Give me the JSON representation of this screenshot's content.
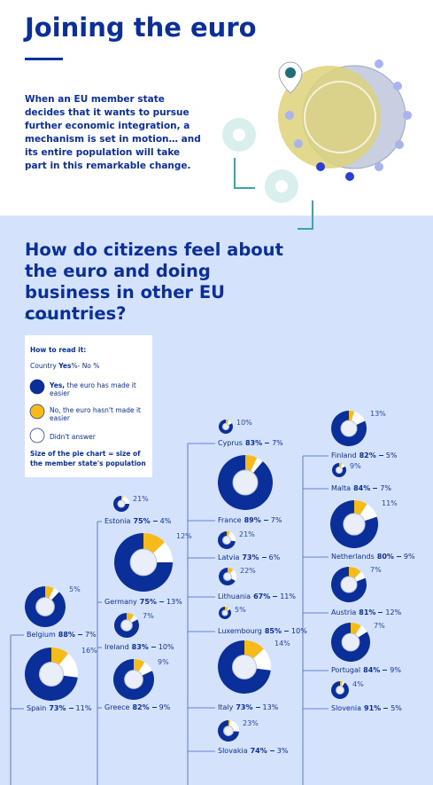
{
  "header": {
    "title": "Joining the euro",
    "intro": "When an EU member state decides that it wants to pursue further economic integration, a mechanism is set in motion… and its entire population will take part in this remarkable change."
  },
  "section": {
    "title": "How do citizens feel about the euro and doing business in other EU countries?"
  },
  "legend": {
    "heading": "How to read it:",
    "format": [
      "Country",
      "Yes",
      "%- No %"
    ],
    "items": [
      {
        "bold": "Yes,",
        "text": "the euro has made it easier"
      },
      {
        "text": "No, the euro hasn't made it easier"
      },
      {
        "text": "Didn't answer"
      }
    ],
    "note": "Size of the pie chart = size of the member state's population"
  },
  "chart_data": {
    "type": "pie",
    "colors": [
      "#0b2f99",
      "#f6bb1b",
      "#ffffff"
    ],
    "countries": [
      {
        "name": "Belgium",
        "values": [
          88,
          7,
          5
        ],
        "value_labels": [
          "88%",
          "7%",
          "5%"
        ]
      },
      {
        "name": "Spain",
        "values": [
          73,
          11,
          16
        ],
        "value_labels": [
          "73%",
          "11%",
          "16%"
        ]
      },
      {
        "name": "Estonia",
        "values": [
          75,
          4,
          21
        ],
        "value_labels": [
          "75%",
          "4%",
          "21%"
        ]
      },
      {
        "name": "Germany",
        "values": [
          75,
          13,
          12
        ],
        "value_labels": [
          "75%",
          "13%",
          "12%"
        ]
      },
      {
        "name": "Ireland",
        "values": [
          83,
          10,
          7
        ],
        "value_labels": [
          "83%",
          "10%",
          "7%"
        ]
      },
      {
        "name": "Greece",
        "values": [
          82,
          9,
          9
        ],
        "value_labels": [
          "82%",
          "9%",
          "9%"
        ]
      },
      {
        "name": "Cyprus",
        "values": [
          83,
          7,
          10
        ],
        "value_labels": [
          "83%",
          "7%",
          "10%"
        ]
      },
      {
        "name": "France",
        "values": [
          89,
          7
        ],
        "value_labels": [
          "89%",
          "7%"
        ]
      },
      {
        "name": "Latvia",
        "values": [
          73,
          6,
          21
        ],
        "value_labels": [
          "73%",
          "6%",
          "21%"
        ]
      },
      {
        "name": "Lithuania",
        "values": [
          67,
          11,
          22
        ],
        "value_labels": [
          "67%",
          "11%",
          "22%"
        ]
      },
      {
        "name": "Luxembourg",
        "values": [
          85,
          10,
          5
        ],
        "value_labels": [
          "85%",
          "10%",
          "5%"
        ]
      },
      {
        "name": "Italy",
        "values": [
          73,
          13,
          14
        ],
        "value_labels": [
          "73%",
          "13%",
          "14%"
        ]
      },
      {
        "name": "Slovakia",
        "values": [
          74,
          3,
          23
        ],
        "value_labels": [
          "74%",
          "3%",
          "23%"
        ]
      },
      {
        "name": "Finland",
        "values": [
          82,
          5,
          13
        ],
        "value_labels": [
          "82%",
          "5%",
          "13%"
        ]
      },
      {
        "name": "Malta",
        "values": [
          84,
          7,
          9
        ],
        "value_labels": [
          "84%",
          "7%",
          "9%"
        ]
      },
      {
        "name": "Netherlands",
        "values": [
          80,
          9,
          11
        ],
        "value_labels": [
          "80%",
          "9%",
          "11%"
        ]
      },
      {
        "name": "Austria",
        "values": [
          81,
          12,
          7
        ],
        "value_labels": [
          "81%",
          "12%",
          "7%"
        ]
      },
      {
        "name": "Portugal",
        "values": [
          84,
          9,
          7
        ],
        "value_labels": [
          "84%",
          "9%",
          "7%"
        ]
      },
      {
        "name": "Slovenia",
        "values": [
          91,
          5,
          4
        ],
        "value_labels": [
          "91%",
          "5%",
          "4%"
        ]
      }
    ]
  }
}
